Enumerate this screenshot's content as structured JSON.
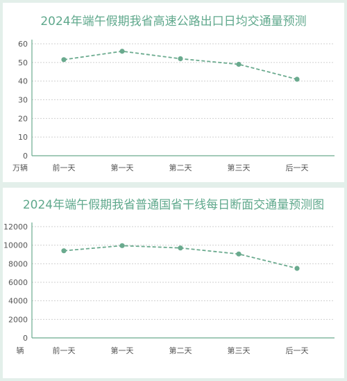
{
  "chart_data": [
    {
      "type": "line",
      "title": "2024年端午假期我省高速公路出口日均交通量预测",
      "unit": "万辆",
      "categories": [
        "前一天",
        "第一天",
        "第二天",
        "第三天",
        "后一天"
      ],
      "series": [
        {
          "values": [
            51.5,
            56,
            52,
            49,
            41
          ]
        }
      ],
      "ylim": [
        0,
        60
      ],
      "yticks": [
        0,
        10,
        20,
        30,
        40,
        50,
        60
      ],
      "grid": true,
      "colors": {
        "line": "#6aaa8e",
        "grid": "#cfcfcf",
        "axis": "#6aaa8e",
        "title": "#5fa88c"
      }
    },
    {
      "type": "line",
      "title": "2024年端午假期我省普通国省干线每日断面交通量预测图",
      "unit": "辆",
      "categories": [
        "前一天",
        "第一天",
        "第二天",
        "第三天",
        "后一天"
      ],
      "series": [
        {
          "values": [
            9400,
            9950,
            9700,
            9050,
            7500
          ]
        }
      ],
      "ylim": [
        0,
        12000
      ],
      "yticks": [
        0,
        2000,
        4000,
        6000,
        8000,
        10000,
        12000
      ],
      "grid": true,
      "colors": {
        "line": "#6aaa8e",
        "grid": "#cfcfcf",
        "axis": "#6aaa8e",
        "title": "#5fa88c"
      }
    }
  ]
}
